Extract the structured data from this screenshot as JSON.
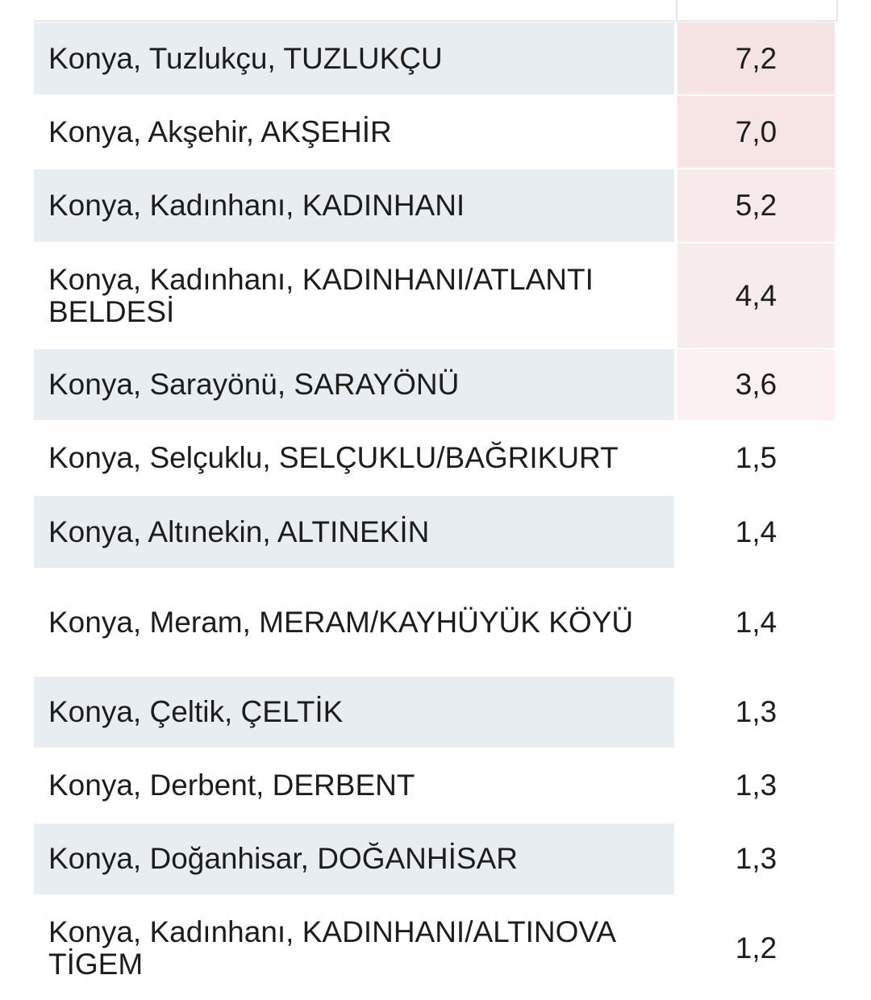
{
  "table": {
    "rows": [
      [
        "Konya, Tuzlukçu, TUZLUKÇU",
        "7,2"
      ],
      [
        "Konya, Akşehir, AKŞEHİR",
        "7,0"
      ],
      [
        "Konya, Kadınhanı, KADINHANI",
        "5,2"
      ],
      [
        "Konya, Kadınhanı, KADINHANI/ATLANTI BELDESİ",
        "4,4"
      ],
      [
        "Konya, Sarayönü, SARAYÖNÜ",
        "3,6"
      ],
      [
        "Konya, Selçuklu, SELÇUKLU/BAĞRIKURT",
        "1,5"
      ],
      [
        "Konya, Altınekin, ALTINEKİN",
        "1,4"
      ],
      [
        "Konya, Meram, MERAM/KAYHÜYÜK KÖYÜ",
        "1,4"
      ],
      [
        "Konya, Çeltik, ÇELTİK",
        "1,3"
      ],
      [
        "Konya, Derbent, DERBENT",
        "1,3"
      ],
      [
        "Konya, Doğanhisar, DOĞANHİSAR",
        "1,3"
      ],
      [
        "Konya, Kadınhanı, KADINHANI/ALTINOVA TİGEM",
        "1,2"
      ]
    ]
  }
}
